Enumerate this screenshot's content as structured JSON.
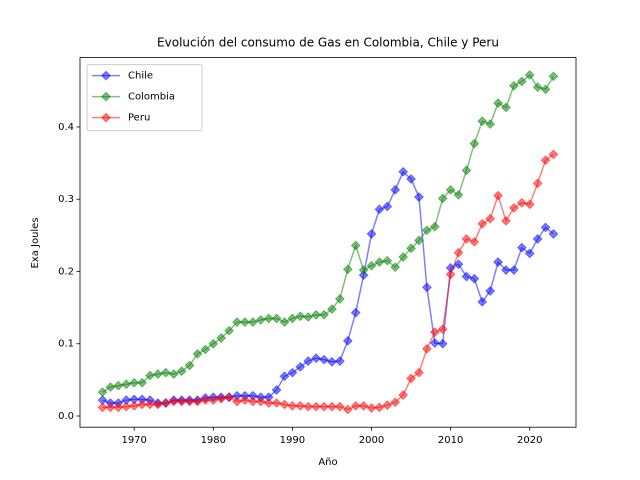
{
  "chart_data": {
    "type": "line",
    "title": "Evolución del consumo de Gas en Colombia, Chile y Peru",
    "xlabel": "Año",
    "ylabel": "Exa Joules",
    "x": [
      1966,
      1967,
      1968,
      1969,
      1970,
      1971,
      1972,
      1973,
      1974,
      1975,
      1976,
      1977,
      1978,
      1979,
      1980,
      1981,
      1982,
      1983,
      1984,
      1985,
      1986,
      1987,
      1988,
      1989,
      1990,
      1991,
      1992,
      1993,
      1994,
      1995,
      1996,
      1997,
      1998,
      1999,
      2000,
      2001,
      2002,
      2003,
      2004,
      2005,
      2006,
      2007,
      2008,
      2009,
      2010,
      2011,
      2012,
      2013,
      2014,
      2015,
      2016,
      2017,
      2018,
      2019,
      2020,
      2021,
      2022,
      2023
    ],
    "series": [
      {
        "name": "Chile",
        "color": "#0000ff",
        "values": [
          0.022,
          0.018,
          0.018,
          0.022,
          0.023,
          0.023,
          0.022,
          0.018,
          0.018,
          0.022,
          0.022,
          0.022,
          0.022,
          0.025,
          0.026,
          0.026,
          0.026,
          0.028,
          0.028,
          0.028,
          0.026,
          0.026,
          0.036,
          0.055,
          0.06,
          0.068,
          0.076,
          0.08,
          0.078,
          0.075,
          0.076,
          0.104,
          0.143,
          0.195,
          0.252,
          0.286,
          0.29,
          0.313,
          0.338,
          0.328,
          0.303,
          0.178,
          0.101,
          0.1,
          0.205,
          0.21,
          0.193,
          0.19,
          0.158,
          0.173,
          0.213,
          0.202,
          0.202,
          0.233,
          0.225,
          0.245,
          0.261,
          0.252
        ]
      },
      {
        "name": "Colombia",
        "color": "#008000",
        "values": [
          0.033,
          0.04,
          0.042,
          0.044,
          0.046,
          0.046,
          0.056,
          0.058,
          0.06,
          0.058,
          0.062,
          0.07,
          0.086,
          0.092,
          0.1,
          0.108,
          0.118,
          0.13,
          0.13,
          0.13,
          0.133,
          0.135,
          0.135,
          0.13,
          0.135,
          0.138,
          0.137,
          0.14,
          0.14,
          0.148,
          0.162,
          0.203,
          0.236,
          0.202,
          0.208,
          0.213,
          0.215,
          0.206,
          0.22,
          0.232,
          0.243,
          0.257,
          0.262,
          0.301,
          0.313,
          0.306,
          0.34,
          0.377,
          0.408,
          0.404,
          0.433,
          0.427,
          0.457,
          0.463,
          0.472,
          0.455,
          0.452,
          0.47
        ]
      },
      {
        "name": "Peru",
        "color": "#ff0000",
        "values": [
          0.012,
          0.012,
          0.012,
          0.013,
          0.014,
          0.016,
          0.016,
          0.016,
          0.018,
          0.02,
          0.02,
          0.02,
          0.02,
          0.022,
          0.022,
          0.024,
          0.026,
          0.02,
          0.022,
          0.02,
          0.02,
          0.018,
          0.018,
          0.016,
          0.014,
          0.014,
          0.013,
          0.013,
          0.013,
          0.013,
          0.013,
          0.009,
          0.014,
          0.014,
          0.011,
          0.012,
          0.015,
          0.019,
          0.029,
          0.052,
          0.06,
          0.093,
          0.116,
          0.12,
          0.196,
          0.226,
          0.245,
          0.241,
          0.266,
          0.273,
          0.305,
          0.27,
          0.288,
          0.295,
          0.293,
          0.322,
          0.354,
          0.362
        ]
      }
    ],
    "xlim": [
      1963.15,
      2025.85
    ],
    "xticks": [
      1970,
      1980,
      1990,
      2000,
      2010,
      2020
    ],
    "ylim": [
      -0.0155,
      0.496
    ],
    "yticks": [
      {
        "value": 0,
        "label": "0.0"
      },
      0.1,
      0.2,
      0.3,
      0.4
    ],
    "legend": "upper left",
    "grid": false
  }
}
